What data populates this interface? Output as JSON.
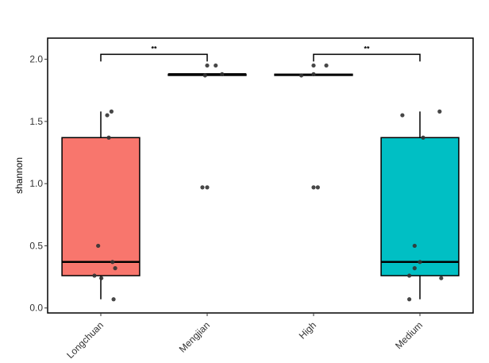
{
  "chart_data": {
    "type": "box",
    "title": "",
    "xlabel": "",
    "ylabel": "shannon",
    "ylim": [
      -0.04,
      2.17
    ],
    "yticks": [
      0.0,
      0.5,
      1.0,
      1.5,
      2.0
    ],
    "ytick_labels": [
      "0.0",
      "0.5",
      "1.0",
      "1.5",
      "2.0"
    ],
    "categories": [
      "Longchuan",
      "Mengjian",
      "High",
      "Medium"
    ],
    "colors": [
      "#F8766D",
      "#F8766D",
      "#00BFC4",
      "#00BFC4"
    ],
    "boxes": [
      {
        "category": "Longchuan",
        "min": 0.07,
        "q1": 0.26,
        "median": 0.37,
        "q3": 1.37,
        "max": 1.58,
        "fill": "#F8766D"
      },
      {
        "category": "Mengjian",
        "min": 1.87,
        "q1": 1.87,
        "median": 1.88,
        "q3": 1.88,
        "max": 1.88,
        "fill": "#F8766D"
      },
      {
        "category": "High",
        "min": 1.87,
        "q1": 1.87,
        "median": 1.875,
        "q3": 1.88,
        "max": 1.88,
        "fill": "#00BFC4"
      },
      {
        "category": "Medium",
        "min": 0.07,
        "q1": 0.26,
        "median": 0.37,
        "q3": 1.37,
        "max": 1.58,
        "fill": "#00BFC4"
      }
    ],
    "points": [
      {
        "category": "Longchuan",
        "values": [
          1.58,
          1.55,
          1.37,
          0.5,
          0.37,
          0.32,
          0.26,
          0.24,
          0.07
        ],
        "jitter": [
          0.2,
          0.12,
          0.15,
          -0.05,
          0.22,
          0.27,
          -0.12,
          0.01,
          0.24
        ]
      },
      {
        "category": "Mengjian",
        "values": [
          1.95,
          1.95,
          1.88,
          1.87,
          0.97,
          0.97
        ],
        "jitter": [
          0.16,
          0.0,
          0.28,
          -0.04,
          0.0,
          -0.09
        ]
      },
      {
        "category": "High",
        "values": [
          1.95,
          1.95,
          1.88,
          1.87,
          0.97,
          0.97
        ],
        "jitter": [
          0.0,
          0.24,
          0.0,
          -0.23,
          0.0,
          0.08
        ]
      },
      {
        "category": "Medium",
        "values": [
          1.58,
          1.55,
          1.37,
          0.5,
          0.37,
          0.32,
          0.26,
          0.24,
          0.07
        ],
        "jitter": [
          0.37,
          -0.33,
          0.06,
          -0.1,
          0.0,
          -0.1,
          -0.2,
          0.4,
          -0.2
        ]
      }
    ],
    "significance": [
      {
        "from": "Longchuan",
        "to": "Mengjian",
        "label": "**",
        "y": 2.04
      },
      {
        "from": "High",
        "to": "Medium",
        "label": "**",
        "y": 2.04
      }
    ],
    "grid": false,
    "legend": "none"
  }
}
